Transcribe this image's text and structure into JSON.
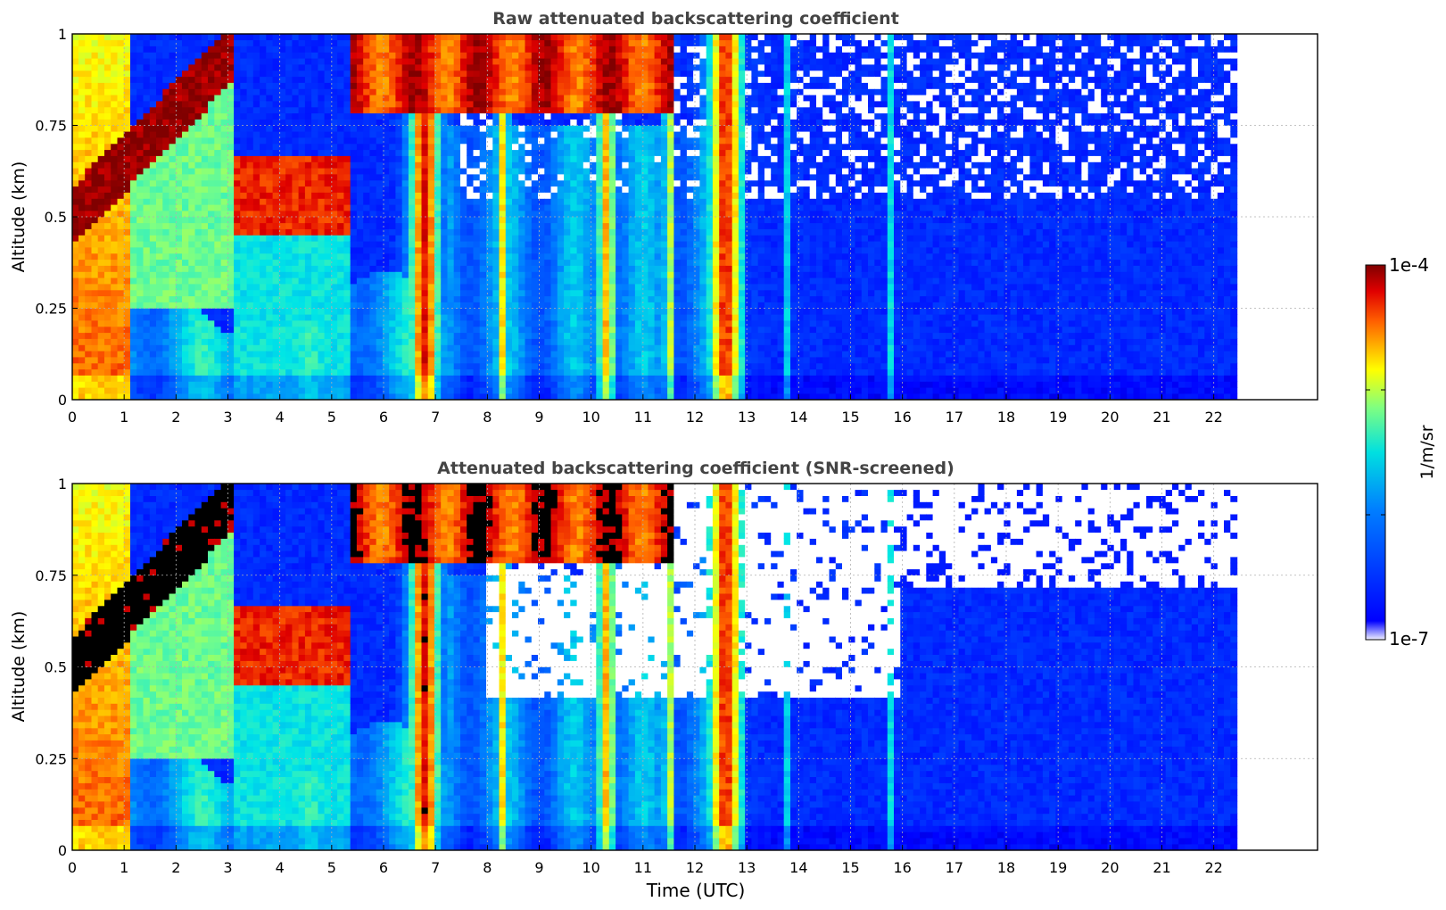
{
  "chart_data": [
    {
      "type": "heatmap",
      "title": "Raw attenuated backscattering coefficient",
      "xlabel": "",
      "ylabel": "Altitude (km)",
      "xlim": [
        0,
        24
      ],
      "ylim": [
        0,
        1
      ],
      "x_ticks": [
        "0",
        "1",
        "2",
        "3",
        "4",
        "5",
        "6",
        "7",
        "8",
        "9",
        "10",
        "11",
        "12",
        "13",
        "14",
        "15",
        "16",
        "17",
        "18",
        "19",
        "20",
        "21",
        "22"
      ],
      "y_ticks": [
        "0",
        "0.25",
        "0.5",
        "0.75",
        "1"
      ],
      "y_tick_values": [
        0,
        0.25,
        0.5,
        0.75,
        1
      ],
      "grid": true,
      "data_extent_hours": [
        0,
        22.45
      ],
      "screened": false,
      "features": [
        {
          "desc": "dense aerosol/cloud layer rising",
          "time": [
            0,
            3.1
          ],
          "altitude": [
            0.5,
            1.0
          ],
          "level": "1e-4"
        },
        {
          "desc": "elevated layer",
          "time": [
            3.1,
            5.4
          ],
          "altitude": [
            0.45,
            0.65
          ],
          "level": "1e-4"
        },
        {
          "desc": "cloud layer",
          "time": [
            5.4,
            11.6
          ],
          "altitude": [
            0.78,
            1.0
          ],
          "level": "1e-4"
        },
        {
          "desc": "boundary layer mixing",
          "time": [
            1,
            7.2
          ],
          "altitude": [
            0,
            0.5
          ],
          "level": "1e-5"
        },
        {
          "desc": "clear/noisy background",
          "time": [
            13,
            22.45
          ],
          "altitude": [
            0,
            1.0
          ],
          "level": "1e-7"
        }
      ]
    },
    {
      "type": "heatmap",
      "title": "Attenuated backscattering coefficient (SNR-screened)",
      "xlabel": "Time (UTC)",
      "ylabel": "Altitude (km)",
      "xlim": [
        0,
        24
      ],
      "ylim": [
        0,
        1
      ],
      "x_ticks": [
        "0",
        "1",
        "2",
        "3",
        "4",
        "5",
        "6",
        "7",
        "8",
        "9",
        "10",
        "11",
        "12",
        "13",
        "14",
        "15",
        "16",
        "17",
        "18",
        "19",
        "20",
        "21",
        "22"
      ],
      "y_ticks": [
        "0",
        "0.25",
        "0.5",
        "0.75",
        "1"
      ],
      "y_tick_values": [
        0,
        0.25,
        0.5,
        0.75,
        1
      ],
      "grid": true,
      "data_extent_hours": [
        0,
        22.45
      ],
      "screened": true,
      "features": [
        {
          "desc": "saturated layer (black)",
          "time": [
            0,
            11.6
          ],
          "altitude": [
            0.45,
            1.0
          ],
          "level": "above 1e-4"
        },
        {
          "desc": "screened-out region (white)",
          "time": [
            8,
            16
          ],
          "altitude": [
            0.4,
            1.0
          ],
          "level": "masked"
        },
        {
          "desc": "screened-out region (white)",
          "time": [
            16,
            22.45
          ],
          "altitude": [
            0.7,
            1.0
          ],
          "level": "masked"
        }
      ]
    }
  ],
  "colorbar": {
    "label": "1/m/sr",
    "max_label": "1e-4",
    "min_label": "1e-7",
    "scale": "log",
    "colormap": "jet"
  },
  "colors": {
    "frame": "#000000",
    "title": "#444444",
    "grid": "#b0b0b0"
  }
}
